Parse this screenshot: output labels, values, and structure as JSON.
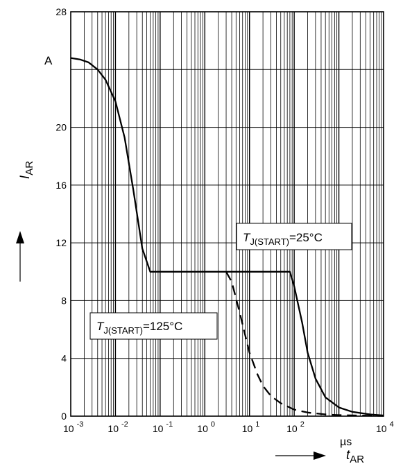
{
  "chart_data": {
    "type": "line",
    "xscale": "log",
    "xlim": [
      0.001,
      10000
    ],
    "ylim": [
      0,
      28
    ],
    "grid": true,
    "xlabel": {
      "sym": "t",
      "sub": "AR"
    },
    "ylabel": {
      "sym": "I",
      "sub": "AR"
    },
    "yunit": "A",
    "xunit": "µs",
    "y_ticks": [
      "0",
      "4",
      "8",
      "12",
      "16",
      "20",
      "28"
    ],
    "x_ticks": [
      {
        "base": "10",
        "exp": "-3"
      },
      {
        "base": "10",
        "exp": "-2"
      },
      {
        "base": "10",
        "exp": "-1"
      },
      {
        "base": "10",
        "exp": "0"
      },
      {
        "base": "10",
        "exp": "1"
      },
      {
        "base": "10",
        "exp": "2"
      },
      {
        "base": "10",
        "exp": "4"
      }
    ],
    "series": [
      {
        "style": "solid",
        "x": [
          0.001,
          0.0016,
          0.0025,
          0.004,
          0.006,
          0.01,
          0.016,
          0.025,
          0.04,
          0.06,
          1,
          10,
          60,
          80,
          100,
          150,
          200,
          300,
          500,
          1000,
          2000,
          5000,
          10000
        ],
        "y": [
          24.8,
          24.7,
          24.5,
          24.0,
          23.3,
          21.8,
          19.3,
          15.7,
          11.6,
          10.0,
          10.0,
          10.0,
          10.0,
          10.0,
          9.0,
          6.5,
          4.4,
          2.6,
          1.3,
          0.6,
          0.3,
          0.12,
          0.05
        ]
      },
      {
        "style": "dashed",
        "x": [
          3,
          4,
          6,
          8,
          10,
          15,
          20,
          30,
          50,
          100,
          200,
          500,
          1000,
          5000,
          10000
        ],
        "y": [
          10.0,
          9.3,
          7.2,
          5.6,
          4.4,
          2.9,
          2.1,
          1.4,
          0.9,
          0.45,
          0.25,
          0.12,
          0.07,
          0.03,
          0.02
        ]
      }
    ],
    "annotations": [
      {
        "sym": "T",
        "sub": "J(START)",
        "rest": "=25°C"
      },
      {
        "sym": "T",
        "sub": "J(START)",
        "rest": "=125°C"
      }
    ]
  }
}
